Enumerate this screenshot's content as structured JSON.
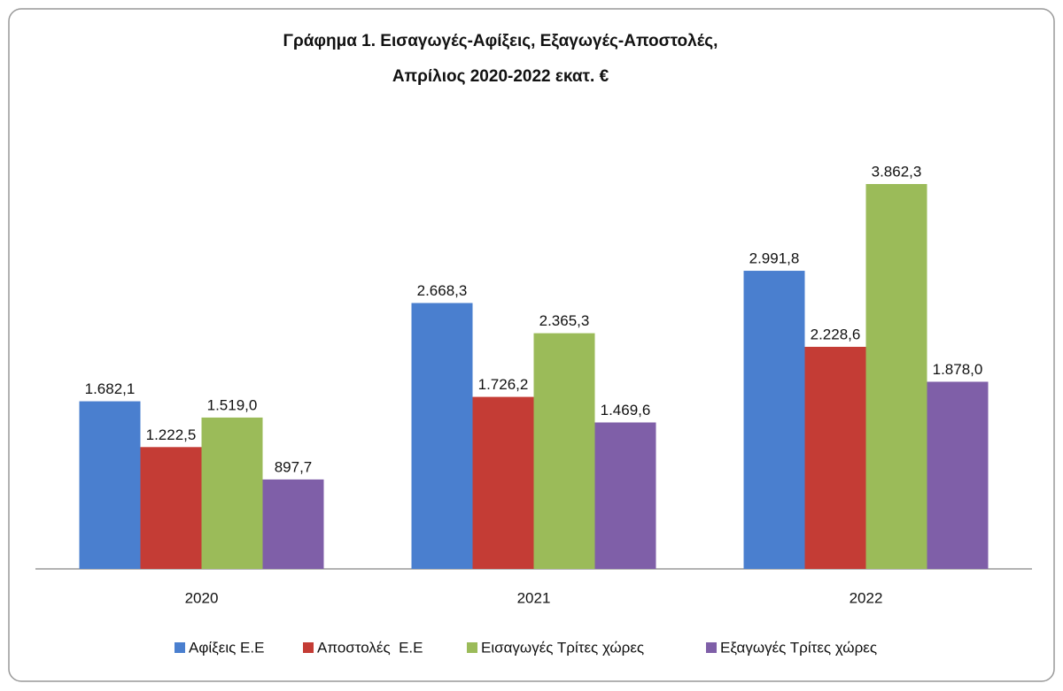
{
  "chart_data": {
    "type": "bar",
    "title": [
      "Γράφημα 1. Εισαγωγές-Αφίξεις, Εξαγωγές-Αποστολές,",
      "Απρίλιος 2020-2022 εκατ. €"
    ],
    "categories": [
      "2020",
      "2021",
      "2022"
    ],
    "series": [
      {
        "name": "Αφίξεις Ε.Ε",
        "color": "#4a7fcf",
        "values": [
          1682.1,
          2668.3,
          2991.8
        ],
        "value_labels": [
          "1.682,1",
          "2.668,3",
          "2.991,8"
        ]
      },
      {
        "name": "Αποστολές  Ε.Ε",
        "color": "#c43c35",
        "values": [
          1222.5,
          1726.2,
          2228.6
        ],
        "value_labels": [
          "1.222,5",
          "1.726,2",
          "2.228,6"
        ]
      },
      {
        "name": "Εισαγωγές Τρίτες χώρες",
        "color": "#9bbb59",
        "values": [
          1519.0,
          2365.3,
          3862.3
        ],
        "value_labels": [
          "1.519,0",
          "2.365,3",
          "3.862,3"
        ]
      },
      {
        "name": "Εξαγωγές Τρίτες χώρες",
        "color": "#7f5fa8",
        "values": [
          897.7,
          1469.6,
          1878.0
        ],
        "value_labels": [
          "897,7",
          "1.469,6",
          "1.878,0"
        ]
      }
    ],
    "legend": "bottom"
  }
}
